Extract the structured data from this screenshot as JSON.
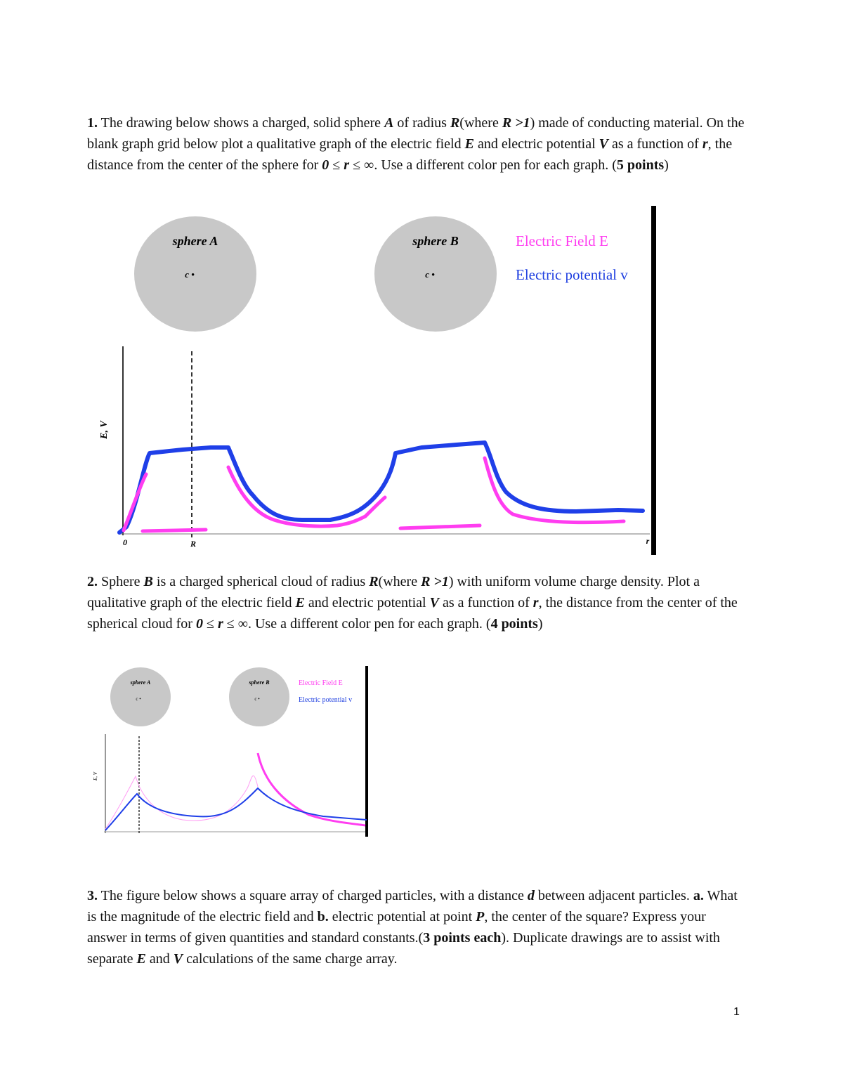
{
  "q1": {
    "parts": [
      "1.",
      " The drawing below shows a charged, solid sphere ",
      "A",
      " of radius ",
      "R",
      "(where ",
      "R >1",
      ") made of conducting material. On the blank graph grid below plot a qualitative graph of the electric field ",
      "E",
      " and electric potential ",
      "V",
      " as a function of ",
      "r",
      ", the distance from the center of the sphere for ",
      "0",
      " ≤ ",
      "r",
      " ≤ ∞. Use a different color pen for each graph. (",
      "5 points",
      ")"
    ]
  },
  "figure1": {
    "sphere_a": "sphere A",
    "sphere_b": "sphere B",
    "center": "c •",
    "legend_e": "Electric Field E",
    "legend_v": "Electric potential v",
    "y_axis": "E, V",
    "x_origin": "0",
    "x_r_mark": "R",
    "x_axis": "r"
  },
  "q2": {
    "parts": [
      "2.",
      " Sphere ",
      "B",
      " is a charged spherical cloud of radius ",
      "R",
      "(where ",
      "R >1",
      ") with uniform volume charge density.  Plot a qualitative graph of the electric field ",
      "E",
      " and electric potential ",
      "V",
      " as a function of ",
      "r",
      ", the distance from the center of the spherical cloud for ",
      "0",
      " ≤ ",
      "r",
      " ≤ ∞. Use a different color pen for each graph. (",
      "4 points",
      ")"
    ]
  },
  "figure2": {
    "sphere_a": "sphere A",
    "sphere_b": "sphere B",
    "center": "c •",
    "legend_e": "Electric Field E",
    "legend_v": "Electric potential v",
    "y_axis": "E, V"
  },
  "q3": {
    "parts": [
      "3.",
      " The figure below shows a square array of charged particles, with a distance ",
      "d",
      " between adjacent particles. ",
      "a.",
      " What is the magnitude of the electric field and ",
      "b.",
      " electric potential at point ",
      "P",
      ", the center of the square? Express your answer in terms of given quantities and standard constants.(",
      "3 points each",
      "). Duplicate drawings are to assist with separate ",
      "E",
      " and ",
      "V",
      " calculations of the same charge array."
    ]
  },
  "page_number": "1"
}
